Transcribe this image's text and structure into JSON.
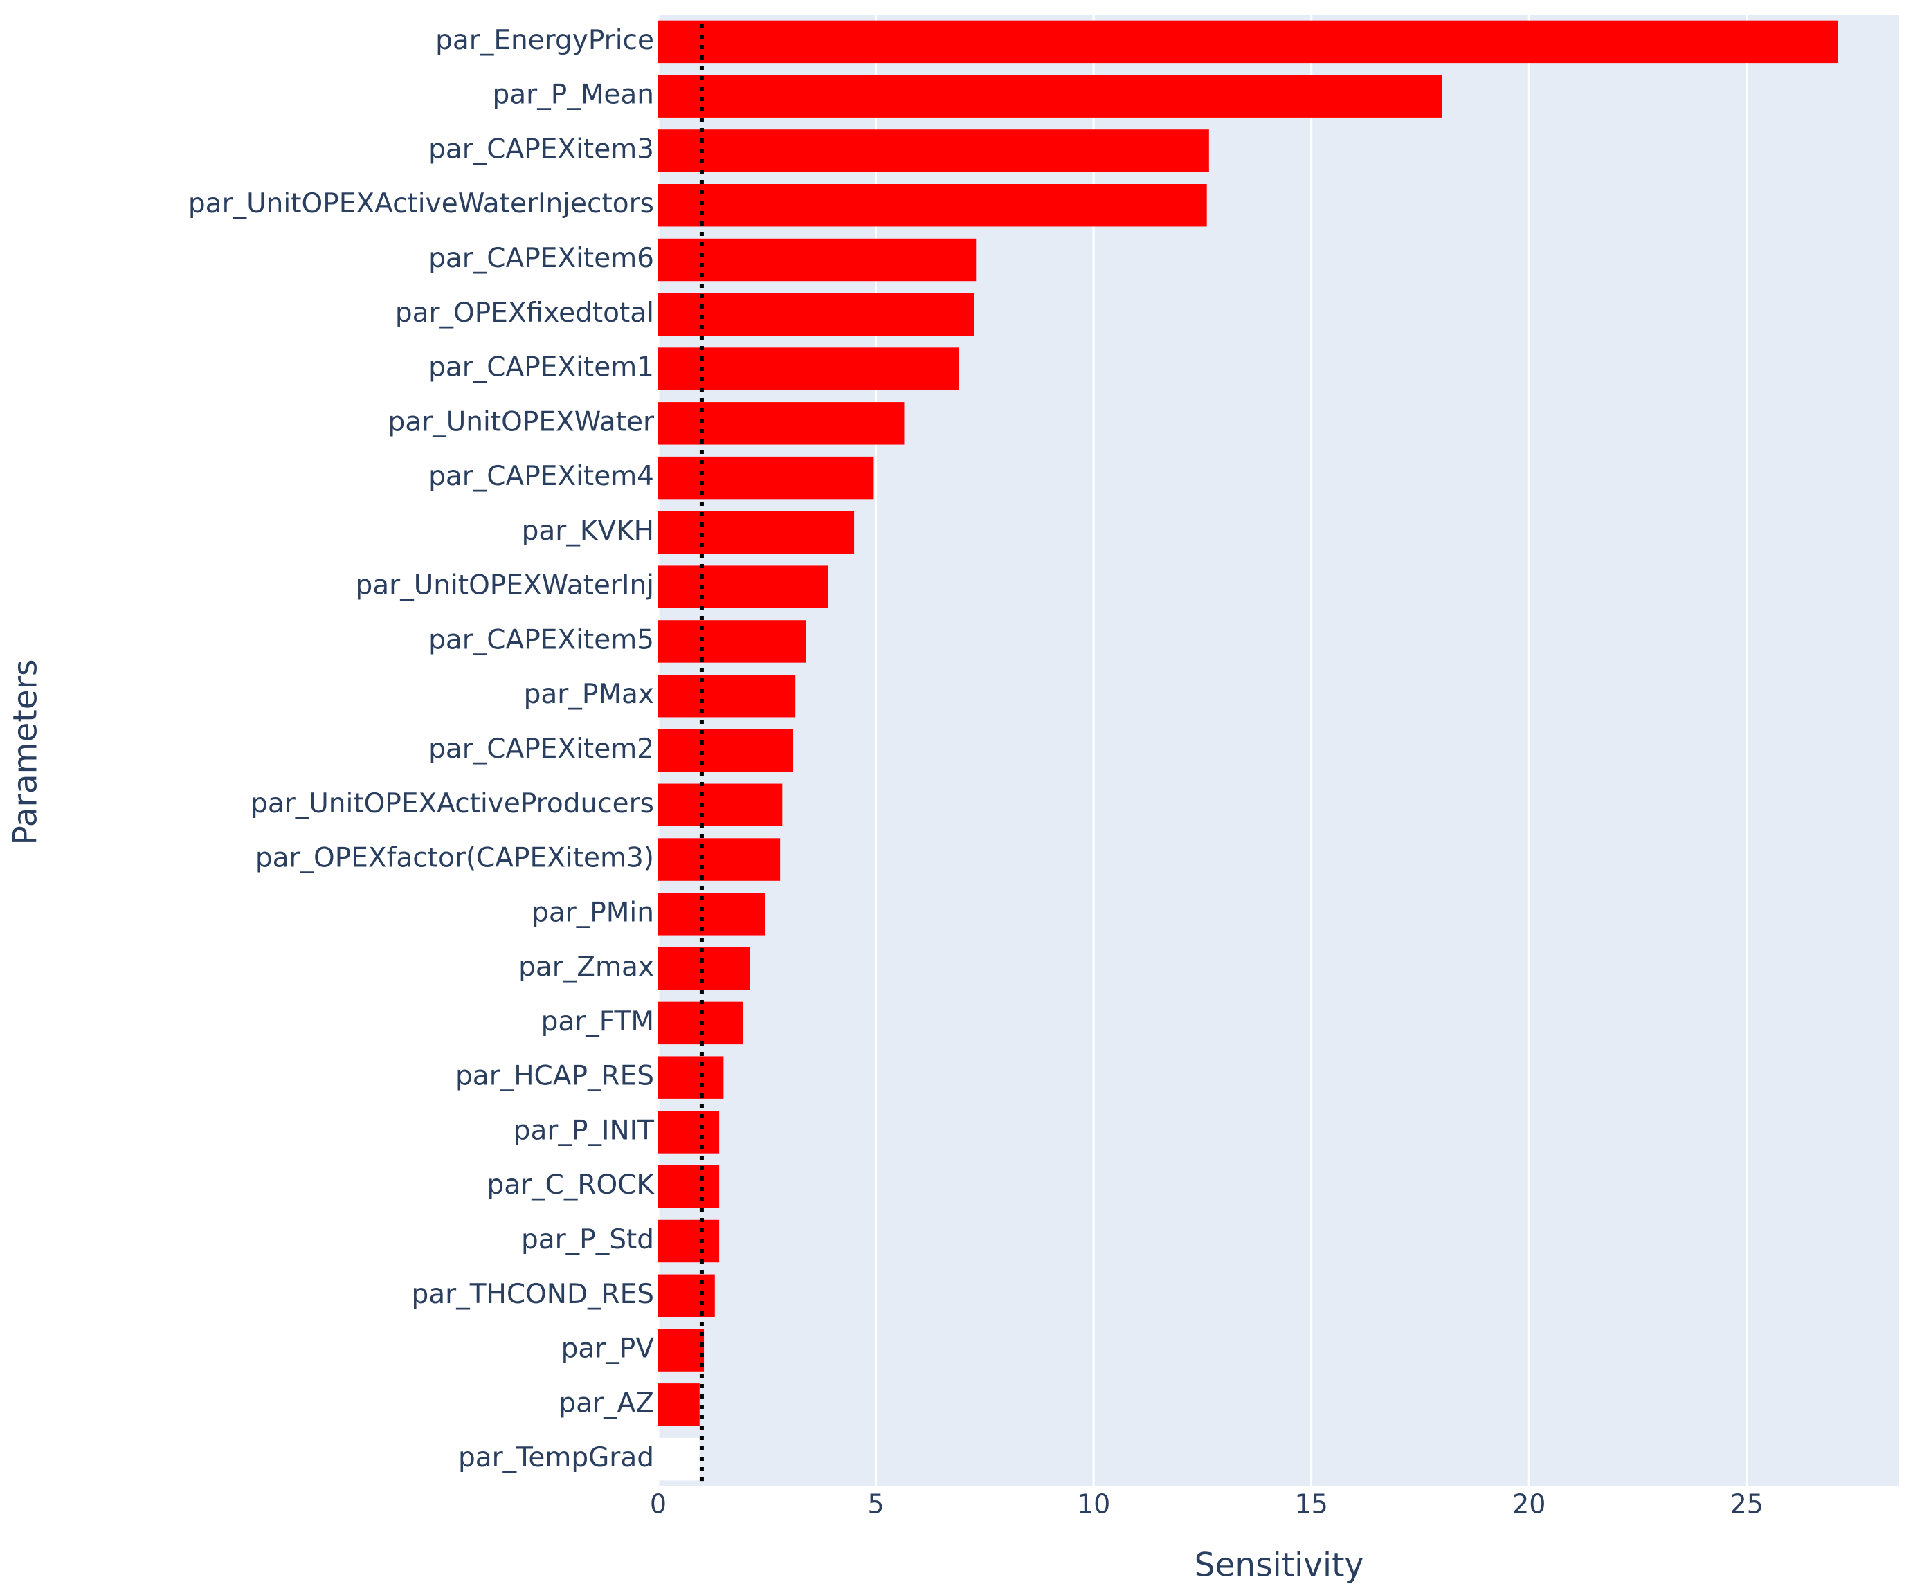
{
  "chart_data": {
    "type": "hbar",
    "x_label": "Sensitivity",
    "y_label": "Parameters",
    "categories": [
      "par_EnergyPrice",
      "par_P_Mean",
      "par_CAPEXitem3",
      "par_UnitOPEXActiveWaterInjectors",
      "par_CAPEXitem6",
      "par_OPEXfixedtotal",
      "par_CAPEXitem1",
      "par_UnitOPEXWater",
      "par_CAPEXitem4",
      "par_KVKH",
      "par_UnitOPEXWaterInj",
      "par_CAPEXitem5",
      "par_PMax",
      "par_CAPEXitem2",
      "par_UnitOPEXActiveProducers",
      "par_OPEXfactor(CAPEXitem3)",
      "par_PMin",
      "par_Zmax",
      "par_FTM",
      "par_HCAP_RES",
      "par_P_INIT",
      "par_C_ROCK",
      "par_P_Std",
      "par_THCOND_RES",
      "par_PV",
      "par_AZ",
      "par_TempGrad"
    ],
    "values": [
      27.1,
      18.0,
      12.65,
      12.6,
      7.3,
      7.25,
      6.9,
      5.65,
      4.95,
      4.5,
      3.9,
      3.4,
      3.15,
      3.1,
      2.85,
      2.8,
      2.45,
      2.1,
      1.95,
      1.5,
      1.4,
      1.4,
      1.4,
      1.3,
      1.05,
      0.95,
      0.95
    ],
    "colors": [
      "#ff0000",
      "#ff0000",
      "#ff0000",
      "#ff0000",
      "#ff0000",
      "#ff0000",
      "#ff0000",
      "#ff0000",
      "#ff0000",
      "#ff0000",
      "#ff0000",
      "#ff0000",
      "#ff0000",
      "#ff0000",
      "#ff0000",
      "#ff0000",
      "#ff0000",
      "#ff0000",
      "#ff0000",
      "#ff0000",
      "#ff0000",
      "#ff0000",
      "#ff0000",
      "#ff0000",
      "#ff0000",
      "#ff0000",
      "#ffffff"
    ],
    "xlim": [
      0,
      28.5
    ],
    "xticks": [
      0,
      5,
      10,
      15,
      20,
      25
    ],
    "reference_line": 1,
    "grid": true,
    "background": "#e5ecf6"
  }
}
